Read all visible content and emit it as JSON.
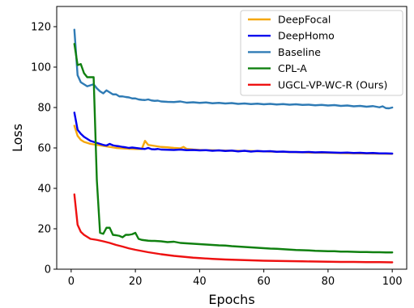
{
  "chart_data": {
    "type": "line",
    "xlabel": "Epochs",
    "ylabel": "Loss",
    "xlim": [
      -4.5,
      104.5
    ],
    "ylim": [
      0,
      130
    ],
    "xticks": [
      0,
      20,
      40,
      60,
      80,
      100
    ],
    "yticks": [
      0,
      20,
      40,
      60,
      80,
      100,
      120
    ],
    "grid": false,
    "legend_position": "top-right",
    "series": [
      {
        "name": "DeepFocal",
        "color": "#f5a70f",
        "points": [
          [
            1,
            71
          ],
          [
            2,
            66
          ],
          [
            3,
            64
          ],
          [
            4,
            63
          ],
          [
            5,
            62.5
          ],
          [
            6,
            62
          ],
          [
            8,
            61.5
          ],
          [
            10,
            61
          ],
          [
            12,
            60.5
          ],
          [
            14,
            60
          ],
          [
            16,
            59.8
          ],
          [
            18,
            59.6
          ],
          [
            20,
            59.5
          ],
          [
            22,
            59.5
          ],
          [
            23,
            63.5
          ],
          [
            24,
            61.5
          ],
          [
            26,
            61
          ],
          [
            28,
            60.5
          ],
          [
            30,
            60.3
          ],
          [
            32,
            60
          ],
          [
            34,
            59.8
          ],
          [
            35,
            60.5
          ],
          [
            36,
            59.5
          ],
          [
            38,
            59.2
          ],
          [
            40,
            59
          ],
          [
            45,
            58.8
          ],
          [
            50,
            58.6
          ],
          [
            55,
            58.5
          ],
          [
            60,
            58.3
          ],
          [
            65,
            58.1
          ],
          [
            70,
            57.9
          ],
          [
            75,
            57.7
          ],
          [
            80,
            57.6
          ],
          [
            85,
            57.4
          ],
          [
            90,
            57.3
          ],
          [
            95,
            57.2
          ],
          [
            100,
            57.1
          ]
        ]
      },
      {
        "name": "DeepHomo",
        "color": "#0000ee",
        "points": [
          [
            1,
            77.5
          ],
          [
            2,
            69
          ],
          [
            3,
            67
          ],
          [
            4,
            65.5
          ],
          [
            5,
            64.5
          ],
          [
            6,
            63.5
          ],
          [
            7,
            63
          ],
          [
            8,
            62.5
          ],
          [
            9,
            62
          ],
          [
            10,
            61.5
          ],
          [
            11,
            61.2
          ],
          [
            12,
            62
          ],
          [
            13,
            61.3
          ],
          [
            14,
            61
          ],
          [
            15,
            60.8
          ],
          [
            16,
            60.5
          ],
          [
            17,
            60.3
          ],
          [
            18,
            60
          ],
          [
            19,
            60.2
          ],
          [
            20,
            60
          ],
          [
            21,
            59.8
          ],
          [
            22,
            59.6
          ],
          [
            23,
            59.5
          ],
          [
            24,
            60
          ],
          [
            25,
            59.4
          ],
          [
            26,
            59.3
          ],
          [
            27,
            59.5
          ],
          [
            28,
            59.2
          ],
          [
            30,
            59.1
          ],
          [
            32,
            59
          ],
          [
            34,
            59.2
          ],
          [
            36,
            58.9
          ],
          [
            38,
            59
          ],
          [
            40,
            58.8
          ],
          [
            42,
            58.9
          ],
          [
            44,
            58.6
          ],
          [
            46,
            58.8
          ],
          [
            48,
            58.5
          ],
          [
            50,
            58.7
          ],
          [
            52,
            58.3
          ],
          [
            54,
            58.6
          ],
          [
            56,
            58.2
          ],
          [
            58,
            58.5
          ],
          [
            60,
            58.3
          ],
          [
            62,
            58.4
          ],
          [
            64,
            58.1
          ],
          [
            66,
            58.2
          ],
          [
            68,
            58
          ],
          [
            70,
            58
          ],
          [
            72,
            57.9
          ],
          [
            74,
            58
          ],
          [
            76,
            57.8
          ],
          [
            78,
            57.9
          ],
          [
            80,
            57.8
          ],
          [
            82,
            57.7
          ],
          [
            84,
            57.6
          ],
          [
            86,
            57.7
          ],
          [
            88,
            57.5
          ],
          [
            90,
            57.6
          ],
          [
            92,
            57.4
          ],
          [
            94,
            57.5
          ],
          [
            96,
            57.3
          ],
          [
            98,
            57.3
          ],
          [
            100,
            57.2
          ]
        ]
      },
      {
        "name": "Baseline",
        "color": "#2f7bb5",
        "points": [
          [
            1,
            118.5
          ],
          [
            2,
            96
          ],
          [
            3,
            92.5
          ],
          [
            4,
            91.5
          ],
          [
            5,
            90.5
          ],
          [
            6,
            91
          ],
          [
            7,
            91.5
          ],
          [
            8,
            89.5
          ],
          [
            9,
            88
          ],
          [
            10,
            87
          ],
          [
            11,
            88.5
          ],
          [
            12,
            87.5
          ],
          [
            13,
            86.5
          ],
          [
            14,
            86.5
          ],
          [
            15,
            85.5
          ],
          [
            16,
            85.5
          ],
          [
            17,
            85.2
          ],
          [
            18,
            85
          ],
          [
            19,
            84.5
          ],
          [
            20,
            84.5
          ],
          [
            21,
            84
          ],
          [
            22,
            83.8
          ],
          [
            23,
            83.7
          ],
          [
            24,
            84
          ],
          [
            25,
            83.5
          ],
          [
            26,
            83.3
          ],
          [
            27,
            83.4
          ],
          [
            28,
            83
          ],
          [
            30,
            82.8
          ],
          [
            32,
            82.7
          ],
          [
            34,
            83
          ],
          [
            36,
            82.4
          ],
          [
            38,
            82.6
          ],
          [
            40,
            82.3
          ],
          [
            42,
            82.5
          ],
          [
            44,
            82.1
          ],
          [
            46,
            82.3
          ],
          [
            48,
            82
          ],
          [
            50,
            82.2
          ],
          [
            52,
            81.8
          ],
          [
            54,
            82
          ],
          [
            56,
            81.7
          ],
          [
            58,
            81.9
          ],
          [
            60,
            81.6
          ],
          [
            62,
            81.8
          ],
          [
            64,
            81.5
          ],
          [
            66,
            81.7
          ],
          [
            68,
            81.4
          ],
          [
            70,
            81.6
          ],
          [
            72,
            81.3
          ],
          [
            74,
            81.4
          ],
          [
            76,
            81.1
          ],
          [
            78,
            81.3
          ],
          [
            80,
            81
          ],
          [
            82,
            81.2
          ],
          [
            84,
            80.8
          ],
          [
            86,
            81
          ],
          [
            88,
            80.6
          ],
          [
            90,
            80.8
          ],
          [
            92,
            80.4
          ],
          [
            94,
            80.7
          ],
          [
            96,
            80.1
          ],
          [
            97,
            80.6
          ],
          [
            98,
            79.7
          ],
          [
            99,
            79.6
          ],
          [
            100,
            80
          ]
        ]
      },
      {
        "name": "CPL-A",
        "color": "#108010",
        "points": [
          [
            1,
            111.5
          ],
          [
            2,
            101
          ],
          [
            3,
            101.5
          ],
          [
            4,
            97
          ],
          [
            5,
            95
          ],
          [
            6,
            95
          ],
          [
            7,
            95
          ],
          [
            8,
            44
          ],
          [
            9,
            18
          ],
          [
            10,
            17.5
          ],
          [
            11,
            20.5
          ],
          [
            12,
            20.5
          ],
          [
            13,
            17
          ],
          [
            14,
            16.8
          ],
          [
            15,
            16.5
          ],
          [
            16,
            15.8
          ],
          [
            17,
            17
          ],
          [
            18,
            17
          ],
          [
            19,
            17.3
          ],
          [
            20,
            18
          ],
          [
            21,
            15
          ],
          [
            22,
            14.5
          ],
          [
            23,
            14.3
          ],
          [
            24,
            14.1
          ],
          [
            25,
            14
          ],
          [
            26,
            14
          ],
          [
            28,
            13.8
          ],
          [
            30,
            13.4
          ],
          [
            32,
            13.6
          ],
          [
            34,
            13
          ],
          [
            36,
            12.8
          ],
          [
            38,
            12.6
          ],
          [
            40,
            12.4
          ],
          [
            42,
            12.2
          ],
          [
            44,
            12
          ],
          [
            46,
            11.8
          ],
          [
            48,
            11.7
          ],
          [
            50,
            11.4
          ],
          [
            52,
            11.2
          ],
          [
            54,
            11
          ],
          [
            56,
            10.8
          ],
          [
            58,
            10.6
          ],
          [
            60,
            10.4
          ],
          [
            62,
            10.2
          ],
          [
            64,
            10.1
          ],
          [
            66,
            9.9
          ],
          [
            68,
            9.7
          ],
          [
            70,
            9.5
          ],
          [
            72,
            9.4
          ],
          [
            74,
            9.3
          ],
          [
            76,
            9.1
          ],
          [
            78,
            9
          ],
          [
            80,
            8.9
          ],
          [
            82,
            8.9
          ],
          [
            84,
            8.7
          ],
          [
            86,
            8.7
          ],
          [
            88,
            8.6
          ],
          [
            90,
            8.5
          ],
          [
            92,
            8.5
          ],
          [
            94,
            8.4
          ],
          [
            96,
            8.4
          ],
          [
            98,
            8.3
          ],
          [
            100,
            8.3
          ]
        ]
      },
      {
        "name": "UGCL-VP-WC-R (Ours)",
        "color": "#ee1111",
        "points": [
          [
            1,
            37
          ],
          [
            2,
            22
          ],
          [
            3,
            18.5
          ],
          [
            4,
            17
          ],
          [
            5,
            16
          ],
          [
            6,
            15
          ],
          [
            8,
            14.5
          ],
          [
            10,
            13.8
          ],
          [
            12,
            13
          ],
          [
            14,
            12
          ],
          [
            16,
            11.2
          ],
          [
            18,
            10.3
          ],
          [
            20,
            9.6
          ],
          [
            22,
            9
          ],
          [
            24,
            8.4
          ],
          [
            26,
            7.9
          ],
          [
            28,
            7.4
          ],
          [
            30,
            7
          ],
          [
            32,
            6.6
          ],
          [
            34,
            6.3
          ],
          [
            36,
            6
          ],
          [
            38,
            5.7
          ],
          [
            40,
            5.5
          ],
          [
            44,
            5.1
          ],
          [
            48,
            4.8
          ],
          [
            52,
            4.6
          ],
          [
            56,
            4.4
          ],
          [
            60,
            4.2
          ],
          [
            64,
            4.1
          ],
          [
            68,
            4
          ],
          [
            72,
            3.9
          ],
          [
            76,
            3.8
          ],
          [
            80,
            3.7
          ],
          [
            84,
            3.6
          ],
          [
            88,
            3.6
          ],
          [
            92,
            3.5
          ],
          [
            96,
            3.5
          ],
          [
            100,
            3.4
          ]
        ]
      }
    ]
  }
}
